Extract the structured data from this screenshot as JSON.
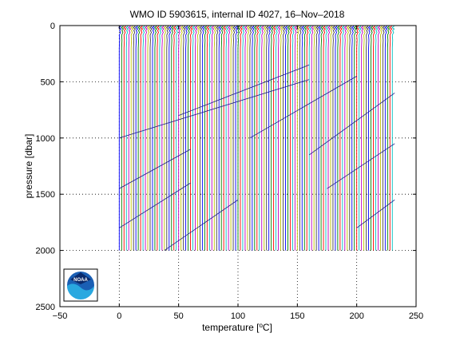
{
  "chart_data": {
    "type": "line",
    "title": "WMO ID 5903615, internal ID 4027, 16–Nov–2018",
    "xlabel_prefix": "temperature [",
    "xlabel_unit": "o",
    "xlabel_suffix": "C]",
    "ylabel": "pressure [dbar]",
    "xlim": [
      -50,
      250
    ],
    "ylim": [
      0,
      2500
    ],
    "y_reversed": true,
    "grid": "dotted",
    "x_ticks": [
      -50,
      0,
      50,
      100,
      150,
      200,
      250
    ],
    "x_tick_labels": [
      "−50",
      "0",
      "50",
      "100",
      "150",
      "200",
      "250"
    ],
    "y_ticks": [
      0,
      500,
      1000,
      1500,
      2000,
      2500
    ],
    "y_tick_labels": [
      "0",
      "500",
      "1000",
      "1500",
      "2000",
      "2500"
    ],
    "profiles": {
      "count": 116,
      "offset_start": 0,
      "offset_step": 2,
      "max_pressure": 2000,
      "colors": [
        "#0000ff",
        "#008000",
        "#ff0000",
        "#00bfbf",
        "#bf00bf",
        "#bfbf00",
        "#404040"
      ]
    },
    "annotation_lines": [
      {
        "x": [
          0,
          60
        ],
        "y": [
          1800,
          1400
        ]
      },
      {
        "x": [
          0,
          60
        ],
        "y": [
          1450,
          1100
        ]
      },
      {
        "x": [
          38,
          100
        ],
        "y": [
          2000,
          1550
        ]
      },
      {
        "x": [
          0,
          160
        ],
        "y": [
          1000,
          480
        ]
      },
      {
        "x": [
          50,
          160
        ],
        "y": [
          800,
          350
        ]
      },
      {
        "x": [
          110,
          200
        ],
        "y": [
          1000,
          450
        ]
      },
      {
        "x": [
          160,
          232
        ],
        "y": [
          1150,
          600
        ]
      },
      {
        "x": [
          175,
          232
        ],
        "y": [
          1450,
          1050
        ]
      },
      {
        "x": [
          200,
          232
        ],
        "y": [
          1800,
          1550
        ]
      }
    ]
  },
  "logo": {
    "text": "NOAA"
  }
}
